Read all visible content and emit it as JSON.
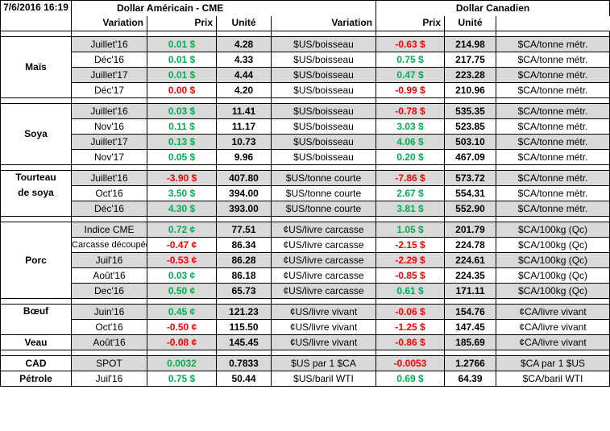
{
  "header": {
    "datetime": "7/6/2016 16:19",
    "group_us": "Dollar Américain - CME",
    "group_ca": "Dollar Canadien",
    "col_variation": "Variation",
    "col_prix": "Prix",
    "col_unite": "Unité"
  },
  "colors": {
    "positive": "#00b050",
    "negative": "#ff0000",
    "shade": "#d9d9d9"
  },
  "sections": [
    {
      "commodity": "Maïs",
      "rows": [
        {
          "contract": "Juillet'16",
          "us_var": "0.01 $",
          "us_var_sign": "pos",
          "us_price": "4.28",
          "us_unit": "$US/boisseau",
          "ca_var": "-0.63 $",
          "ca_var_sign": "neg",
          "ca_price": "214.98",
          "ca_unit": "$CA/tonne métr."
        },
        {
          "contract": "Déc'16",
          "us_var": "0.01 $",
          "us_var_sign": "pos",
          "us_price": "4.33",
          "us_unit": "$US/boisseau",
          "ca_var": "0.75 $",
          "ca_var_sign": "pos",
          "ca_price": "217.75",
          "ca_unit": "$CA/tonne métr."
        },
        {
          "contract": "Juillet'17",
          "us_var": "0.01 $",
          "us_var_sign": "pos",
          "us_price": "4.44",
          "us_unit": "$US/boisseau",
          "ca_var": "0.47 $",
          "ca_var_sign": "pos",
          "ca_price": "223.28",
          "ca_unit": "$CA/tonne métr."
        },
        {
          "contract": "Déc'17",
          "us_var": "0.00 $",
          "us_var_sign": "neg",
          "us_price": "4.20",
          "us_unit": "$US/boisseau",
          "ca_var": "-0.99 $",
          "ca_var_sign": "neg",
          "ca_price": "210.96",
          "ca_unit": "$CA/tonne métr."
        }
      ]
    },
    {
      "commodity": "Soya",
      "rows": [
        {
          "contract": "Juillet'16",
          "us_var": "0.03 $",
          "us_var_sign": "pos",
          "us_price": "11.41",
          "us_unit": "$US/boisseau",
          "ca_var": "-0.78 $",
          "ca_var_sign": "neg",
          "ca_price": "535.35",
          "ca_unit": "$CA/tonne métr."
        },
        {
          "contract": "Nov'16",
          "us_var": "0.11 $",
          "us_var_sign": "pos",
          "us_price": "11.17",
          "us_unit": "$US/boisseau",
          "ca_var": "3.03 $",
          "ca_var_sign": "pos",
          "ca_price": "523.85",
          "ca_unit": "$CA/tonne métr."
        },
        {
          "contract": "Juillet'17",
          "us_var": "0.13 $",
          "us_var_sign": "pos",
          "us_price": "10.73",
          "us_unit": "$US/boisseau",
          "ca_var": "4.06 $",
          "ca_var_sign": "pos",
          "ca_price": "503.10",
          "ca_unit": "$CA/tonne métr."
        },
        {
          "contract": "Nov'17",
          "us_var": "0.05 $",
          "us_var_sign": "pos",
          "us_price": "9.96",
          "us_unit": "$US/boisseau",
          "ca_var": "0.20 $",
          "ca_var_sign": "pos",
          "ca_price": "467.09",
          "ca_unit": "$CA/tonne métr."
        }
      ]
    },
    {
      "commodity_line1": "Tourteau",
      "commodity_line2": "de soya",
      "rows": [
        {
          "contract": "Juillet'16",
          "us_var": "-3.90 $",
          "us_var_sign": "neg",
          "us_price": "407.80",
          "us_unit": "$US/tonne courte",
          "ca_var": "-7.86 $",
          "ca_var_sign": "neg",
          "ca_price": "573.72",
          "ca_unit": "$CA/tonne métr."
        },
        {
          "contract": "Oct'16",
          "us_var": "3.50 $",
          "us_var_sign": "pos",
          "us_price": "394.00",
          "us_unit": "$US/tonne courte",
          "ca_var": "2.67 $",
          "ca_var_sign": "pos",
          "ca_price": "554.31",
          "ca_unit": "$CA/tonne métr."
        },
        {
          "contract": "Déc'16",
          "us_var": "4.30 $",
          "us_var_sign": "pos",
          "us_price": "393.00",
          "us_unit": "$US/tonne courte",
          "ca_var": "3.81 $",
          "ca_var_sign": "pos",
          "ca_price": "552.90",
          "ca_unit": "$CA/tonne métr."
        }
      ]
    },
    {
      "commodity": "Porc",
      "rows": [
        {
          "contract": "Indice CME",
          "us_var": "0.72 ¢",
          "us_var_sign": "pos",
          "us_price": "77.51",
          "us_unit": "¢US/livre carcasse",
          "ca_var": "1.05 $",
          "ca_var_sign": "pos",
          "ca_price": "201.79",
          "ca_unit": "$CA/100kg (Qc)"
        },
        {
          "contract": "Carcasse découpée",
          "us_var": "-0.47 ¢",
          "us_var_sign": "neg",
          "us_price": "86.34",
          "us_unit": "¢US/livre carcasse",
          "ca_var": "-2.15 $",
          "ca_var_sign": "neg",
          "ca_price": "224.78",
          "ca_unit": "$CA/100kg (Qc)"
        },
        {
          "contract": "Juil'16",
          "us_var": "-0.53 ¢",
          "us_var_sign": "neg",
          "us_price": "86.28",
          "us_unit": "¢US/livre carcasse",
          "ca_var": "-2.29 $",
          "ca_var_sign": "neg",
          "ca_price": "224.61",
          "ca_unit": "$CA/100kg (Qc)"
        },
        {
          "contract": "Août'16",
          "us_var": "0.03 ¢",
          "us_var_sign": "pos",
          "us_price": "86.18",
          "us_unit": "¢US/livre carcasse",
          "ca_var": "-0.85 $",
          "ca_var_sign": "neg",
          "ca_price": "224.35",
          "ca_unit": "$CA/100kg (Qc)"
        },
        {
          "contract": "Dec'16",
          "us_var": "0.50 ¢",
          "us_var_sign": "pos",
          "us_price": "65.73",
          "us_unit": "¢US/livre carcasse",
          "ca_var": "0.61 $",
          "ca_var_sign": "pos",
          "ca_price": "171.11",
          "ca_unit": "$CA/100kg (Qc)"
        }
      ]
    },
    {
      "commodity_beef": "Bœuf",
      "commodity_veal": "Veau",
      "rows": [
        {
          "contract": "Juin'16",
          "us_var": "0.45 ¢",
          "us_var_sign": "pos",
          "us_price": "121.23",
          "us_unit": "¢US/livre vivant",
          "ca_var": "-0.06 $",
          "ca_var_sign": "neg",
          "ca_price": "154.76",
          "ca_unit": "¢CA/livre vivant"
        },
        {
          "contract": "Oct'16",
          "us_var": "-0.50 ¢",
          "us_var_sign": "neg",
          "us_price": "115.50",
          "us_unit": "¢US/livre vivant",
          "ca_var": "-1.25 $",
          "ca_var_sign": "neg",
          "ca_price": "147.45",
          "ca_unit": "¢CA/livre vivant"
        },
        {
          "contract": "Août'16",
          "us_var": "-0.08 ¢",
          "us_var_sign": "neg",
          "us_price": "145.45",
          "us_unit": "¢US/livre vivant",
          "ca_var": "-0.86 $",
          "ca_var_sign": "neg",
          "ca_price": "185.69",
          "ca_unit": "¢CA/livre vivant"
        }
      ]
    },
    {
      "rows": [
        {
          "commodity": "CAD",
          "contract": "SPOT",
          "us_var": "0.0032",
          "us_var_sign": "pos",
          "us_price": "0.7833",
          "us_unit": "$US par 1 $CA",
          "ca_var": "-0.0053",
          "ca_var_sign": "neg",
          "ca_price": "1.2766",
          "ca_unit": "$CA par 1 $US"
        },
        {
          "commodity": "Pétrole",
          "contract": "Juil'16",
          "us_var": "0.75 $",
          "us_var_sign": "pos",
          "us_price": "50.44",
          "us_unit": "$US/baril WTI",
          "ca_var": "0.69 $",
          "ca_var_sign": "pos",
          "ca_price": "64.39",
          "ca_unit": "$CA/baril WTI"
        }
      ]
    }
  ]
}
